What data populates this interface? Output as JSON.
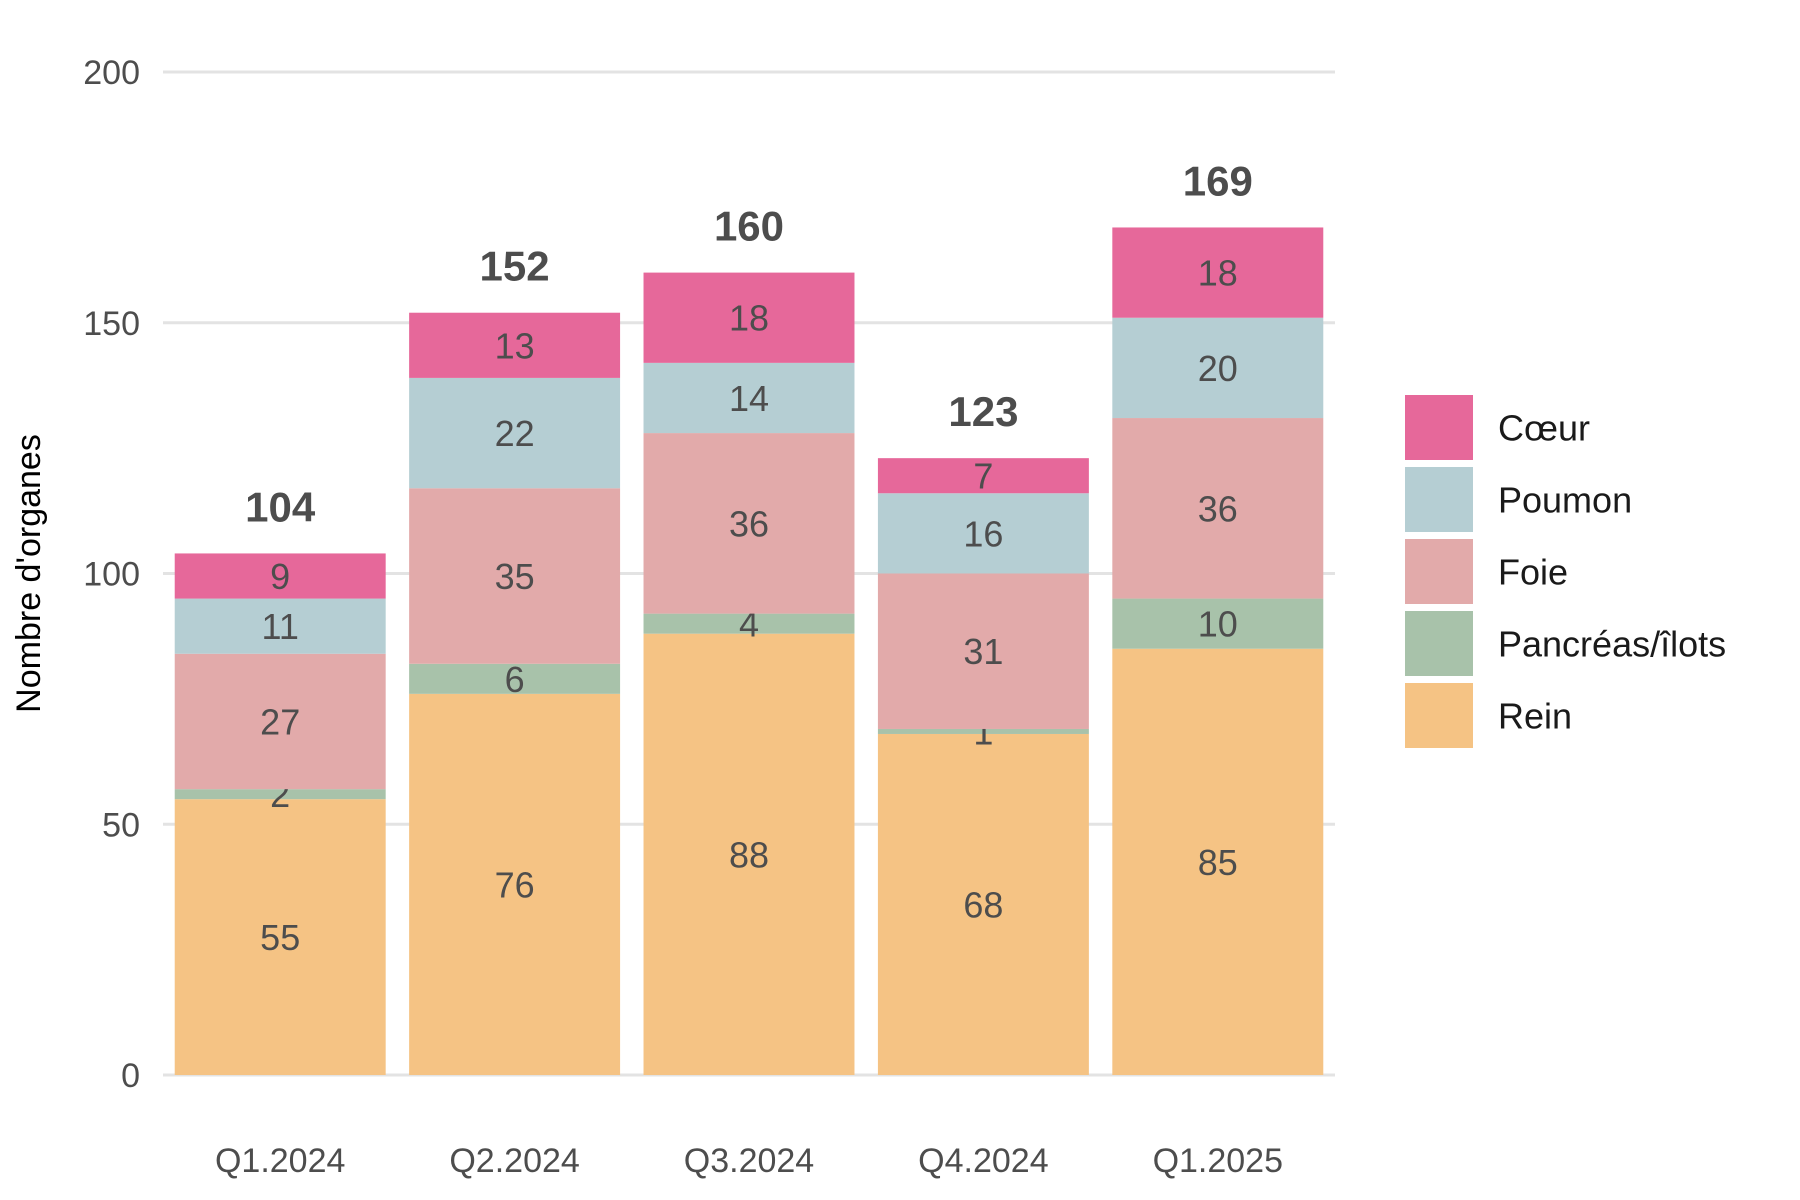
{
  "chart_data": {
    "type": "bar",
    "stacked": true,
    "title": "",
    "xlabel": "",
    "ylabel": "Nombre d'organes",
    "ylim": [
      0,
      200
    ],
    "yticks": [
      0,
      50,
      100,
      150,
      200
    ],
    "grid": true,
    "legend_position": "right",
    "categories": [
      "Q1.2024",
      "Q2.2024",
      "Q3.2024",
      "Q4.2024",
      "Q1.2025"
    ],
    "series": [
      {
        "name": "Rein",
        "color": "#F5C384",
        "values": [
          55,
          76,
          88,
          68,
          85
        ]
      },
      {
        "name": "Pancréas/îlots",
        "color": "#A8C2AA",
        "values": [
          2,
          6,
          4,
          1,
          10
        ]
      },
      {
        "name": "Foie",
        "color": "#E2AAAA",
        "values": [
          27,
          35,
          36,
          31,
          36
        ]
      },
      {
        "name": "Poumon",
        "color": "#B5CED3",
        "values": [
          11,
          22,
          14,
          16,
          20
        ]
      },
      {
        "name": "Cœur",
        "color": "#E6689A",
        "values": [
          9,
          13,
          18,
          7,
          18
        ]
      }
    ],
    "totals": [
      104,
      152,
      160,
      123,
      169
    ],
    "legend_order": [
      "Cœur",
      "Poumon",
      "Foie",
      "Pancréas/îlots",
      "Rein"
    ]
  }
}
